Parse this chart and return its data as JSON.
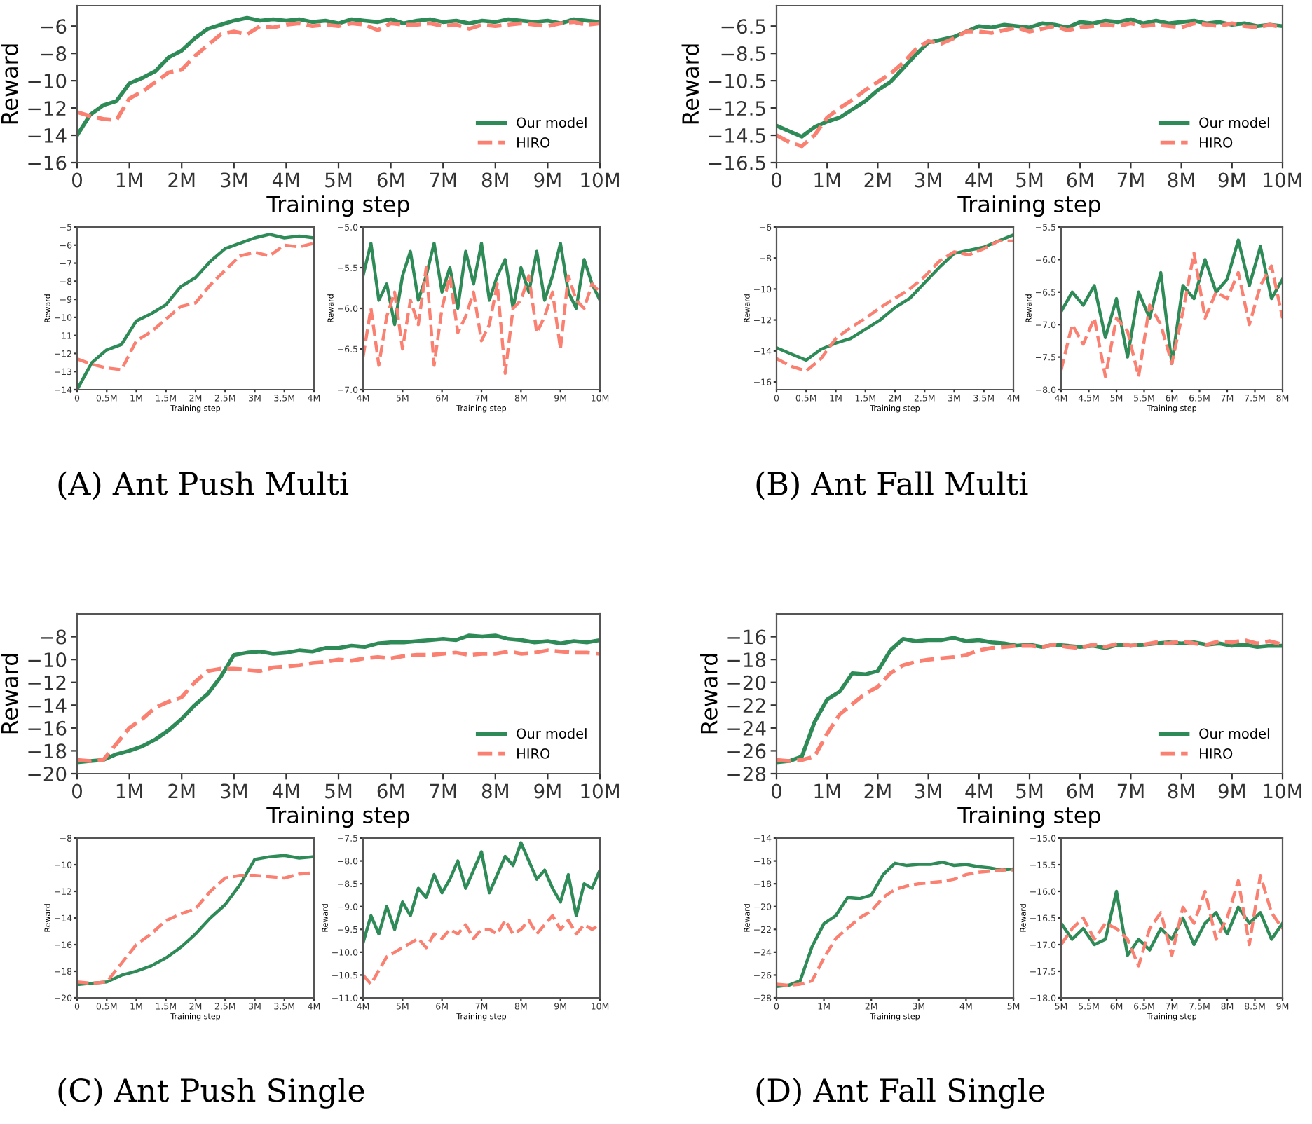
{
  "chart_data": [
    {
      "type": "line",
      "xlabel": "Training step",
      "ylabel": "Reward",
      "legend": "lower right",
      "x": [
        0,
        0.25,
        0.5,
        0.75,
        1,
        1.25,
        1.5,
        1.75,
        2,
        2.25,
        2.5,
        2.75,
        3,
        3.25,
        3.5,
        3.75,
        4,
        4.25,
        4.5,
        4.75,
        5,
        5.25,
        5.5,
        5.75,
        6,
        6.25,
        6.5,
        6.75,
        7,
        7.25,
        7.5,
        7.75,
        8,
        8.25,
        8.5,
        8.75,
        9,
        9.25,
        9.5,
        9.75,
        10
      ],
      "xlim": [
        0,
        10
      ],
      "xticks": [
        0,
        {
          "value": 1,
          "label": "1M"
        },
        {
          "value": 2,
          "label": "2M"
        },
        {
          "value": 3,
          "label": "3M"
        },
        {
          "value": 4,
          "label": "4M"
        },
        {
          "value": 5,
          "label": "5M"
        },
        {
          "value": 6,
          "label": "6M"
        },
        {
          "value": 7,
          "label": "7M"
        },
        {
          "value": 8,
          "label": "8M"
        },
        {
          "value": 9,
          "label": "9M"
        },
        {
          "value": 10,
          "label": "10M"
        }
      ],
      "ylim": [
        -16,
        -4.5
      ],
      "yticks": [
        -16,
        -14,
        -12,
        -10,
        -8,
        -6
      ],
      "series": [
        {
          "name": "Our model",
          "color": "#2e8b57",
          "line_style": "solid",
          "values": [
            -14.0,
            -12.5,
            -11.8,
            -11.5,
            -10.2,
            -9.8,
            -9.3,
            -8.3,
            -7.8,
            -6.9,
            -6.2,
            -5.9,
            -5.6,
            -5.4,
            -5.6,
            -5.5,
            -5.6,
            -5.5,
            -5.7,
            -5.6,
            -5.8,
            -5.5,
            -5.6,
            -5.7,
            -5.5,
            -5.8,
            -5.6,
            -5.5,
            -5.7,
            -5.6,
            -5.8,
            -5.6,
            -5.7,
            -5.5,
            -5.6,
            -5.7,
            -5.6,
            -5.8,
            -5.5,
            -5.6,
            -5.7
          ]
        },
        {
          "name": "HIRO",
          "color": "#fa8072",
          "line_style": "dashed",
          "values": [
            -12.3,
            -12.6,
            -12.8,
            -12.9,
            -11.3,
            -10.8,
            -10.1,
            -9.4,
            -9.2,
            -8.2,
            -7.4,
            -6.6,
            -6.4,
            -6.6,
            -6.0,
            -6.1,
            -5.9,
            -5.8,
            -6.0,
            -5.9,
            -6.0,
            -5.8,
            -5.9,
            -6.3,
            -5.8,
            -5.9,
            -5.9,
            -5.8,
            -6.0,
            -5.9,
            -6.2,
            -5.9,
            -6.0,
            -5.9,
            -5.8,
            -5.9,
            -6.0,
            -5.8,
            -5.7,
            -5.9,
            -5.8
          ]
        }
      ]
    },
    {
      "type": "line",
      "xlabel": "Training step",
      "ylabel": "Reward",
      "x": [
        0,
        0.25,
        0.5,
        0.75,
        1,
        1.25,
        1.5,
        1.75,
        2,
        2.25,
        2.5,
        2.75,
        3,
        3.25,
        3.5,
        3.75,
        4
      ],
      "xlim": [
        0,
        4
      ],
      "xticks": [
        0,
        {
          "value": 0.5,
          "label": "0.5M"
        },
        {
          "value": 1,
          "label": "1M"
        },
        {
          "value": 1.5,
          "label": "1.5M"
        },
        {
          "value": 2,
          "label": "2M"
        },
        {
          "value": 2.5,
          "label": "2.5M"
        },
        {
          "value": 3,
          "label": "3M"
        },
        {
          "value": 3.5,
          "label": "3.5M"
        },
        {
          "value": 4,
          "label": "4M"
        }
      ],
      "ylim": [
        -14,
        -5
      ],
      "yticks": [
        -14,
        -13,
        -12,
        -11,
        -10,
        -9,
        -8,
        -7,
        -6,
        -5
      ],
      "series": [
        {
          "color": "#2e8b57",
          "line_style": "solid",
          "values": [
            -14.0,
            -12.5,
            -11.8,
            -11.5,
            -10.2,
            -9.8,
            -9.3,
            -8.3,
            -7.8,
            -6.9,
            -6.2,
            -5.9,
            -5.6,
            -5.4,
            -5.6,
            -5.5,
            -5.6
          ]
        },
        {
          "color": "#fa8072",
          "line_style": "dashed",
          "values": [
            -12.3,
            -12.6,
            -12.8,
            -12.9,
            -11.3,
            -10.8,
            -10.1,
            -9.4,
            -9.2,
            -8.2,
            -7.4,
            -6.6,
            -6.4,
            -6.6,
            -6.0,
            -6.1,
            -5.9
          ]
        }
      ]
    },
    {
      "type": "line",
      "xlabel": "Training step",
      "ylabel": "Reward",
      "annotations": [
        "(A) Ant Push Multi"
      ],
      "x": [
        4,
        4.2,
        4.4,
        4.6,
        4.8,
        5,
        5.2,
        5.4,
        5.6,
        5.8,
        6,
        6.2,
        6.4,
        6.6,
        6.8,
        7,
        7.2,
        7.4,
        7.6,
        7.8,
        8,
        8.2,
        8.4,
        8.6,
        8.8,
        9,
        9.2,
        9.4,
        9.6,
        9.8,
        10
      ],
      "xlim": [
        4,
        10
      ],
      "xticks": [
        {
          "value": 4,
          "label": "4M"
        },
        {
          "value": 5,
          "label": "5M"
        },
        {
          "value": 6,
          "label": "6M"
        },
        {
          "value": 7,
          "label": "7M"
        },
        {
          "value": 8,
          "label": "8M"
        },
        {
          "value": 9,
          "label": "9M"
        },
        {
          "value": 10,
          "label": "10M"
        }
      ],
      "ylim": [
        -7,
        -5
      ],
      "yticks": [
        {
          "value": -7,
          "label": "−7.0"
        },
        -6.5,
        {
          "value": -6,
          "label": "−6.0"
        },
        -5.5,
        {
          "value": -5,
          "label": "−5.0"
        }
      ],
      "series": [
        {
          "color": "#2e8b57",
          "line_style": "solid",
          "values": [
            -5.6,
            -5.2,
            -5.9,
            -5.7,
            -6.2,
            -5.6,
            -5.3,
            -5.9,
            -5.6,
            -5.2,
            -5.8,
            -5.5,
            -6.0,
            -5.3,
            -5.7,
            -5.2,
            -5.9,
            -5.6,
            -5.4,
            -6.0,
            -5.5,
            -5.8,
            -5.3,
            -5.9,
            -5.6,
            -5.2,
            -5.8,
            -6.0,
            -5.4,
            -5.7,
            -5.9
          ]
        },
        {
          "color": "#fa8072",
          "line_style": "dashed",
          "values": [
            -6.6,
            -6.0,
            -6.7,
            -6.1,
            -5.8,
            -6.5,
            -5.9,
            -6.2,
            -5.5,
            -6.7,
            -6.0,
            -5.6,
            -6.3,
            -6.1,
            -5.8,
            -6.4,
            -6.2,
            -5.7,
            -6.8,
            -6.0,
            -5.9,
            -5.6,
            -6.3,
            -6.1,
            -5.8,
            -6.5,
            -5.6,
            -5.9,
            -6.0,
            -5.7,
            -5.8
          ]
        }
      ]
    },
    {
      "type": "line",
      "xlabel": "Training step",
      "ylabel": "Reward",
      "legend": "lower right",
      "x": [
        0,
        0.25,
        0.5,
        0.75,
        1,
        1.25,
        1.5,
        1.75,
        2,
        2.25,
        2.5,
        2.75,
        3,
        3.25,
        3.5,
        3.75,
        4,
        4.25,
        4.5,
        4.75,
        5,
        5.25,
        5.5,
        5.75,
        6,
        6.25,
        6.5,
        6.75,
        7,
        7.25,
        7.5,
        7.75,
        8,
        8.25,
        8.5,
        8.75,
        9,
        9.25,
        9.5,
        9.75,
        10
      ],
      "xlim": [
        0,
        10
      ],
      "xticks": [
        0,
        {
          "value": 1,
          "label": "1M"
        },
        {
          "value": 2,
          "label": "2M"
        },
        {
          "value": 3,
          "label": "3M"
        },
        {
          "value": 4,
          "label": "4M"
        },
        {
          "value": 5,
          "label": "5M"
        },
        {
          "value": 6,
          "label": "6M"
        },
        {
          "value": 7,
          "label": "7M"
        },
        {
          "value": 8,
          "label": "8M"
        },
        {
          "value": 9,
          "label": "9M"
        },
        {
          "value": 10,
          "label": "10M"
        }
      ],
      "ylim": [
        -16.5,
        -5
      ],
      "yticks": [
        -16.5,
        -14.5,
        -12.5,
        -10.5,
        -8.5,
        -6.5
      ],
      "series": [
        {
          "name": "Our model",
          "color": "#2e8b57",
          "line_style": "solid",
          "values": [
            -13.8,
            -14.2,
            -14.6,
            -13.9,
            -13.5,
            -13.2,
            -12.6,
            -12.0,
            -11.2,
            -10.6,
            -9.6,
            -8.6,
            -7.7,
            -7.5,
            -7.3,
            -6.9,
            -6.5,
            -6.6,
            -6.4,
            -6.5,
            -6.6,
            -6.3,
            -6.4,
            -6.6,
            -6.2,
            -6.3,
            -6.1,
            -6.2,
            -6.0,
            -6.3,
            -6.1,
            -6.3,
            -6.2,
            -6.1,
            -6.3,
            -6.2,
            -6.4,
            -6.3,
            -6.5,
            -6.4,
            -6.5
          ]
        },
        {
          "name": "HIRO",
          "color": "#fa8072",
          "line_style": "dashed",
          "values": [
            -14.5,
            -15.0,
            -15.3,
            -14.5,
            -13.2,
            -12.5,
            -11.9,
            -11.2,
            -10.6,
            -10.0,
            -9.2,
            -8.2,
            -7.6,
            -7.8,
            -7.4,
            -6.9,
            -6.9,
            -7.0,
            -6.8,
            -6.6,
            -6.9,
            -6.7,
            -6.5,
            -6.8,
            -6.6,
            -6.5,
            -6.4,
            -6.5,
            -6.3,
            -6.5,
            -6.4,
            -6.5,
            -6.6,
            -6.3,
            -6.4,
            -6.5,
            -6.3,
            -6.5,
            -6.6,
            -6.4,
            -6.6
          ]
        }
      ]
    },
    {
      "type": "line",
      "xlabel": "Training step",
      "ylabel": "Reward",
      "x": [
        0,
        0.25,
        0.5,
        0.75,
        1,
        1.25,
        1.5,
        1.75,
        2,
        2.25,
        2.5,
        2.75,
        3,
        3.25,
        3.5,
        3.75,
        4
      ],
      "xlim": [
        0,
        4
      ],
      "xticks": [
        0,
        {
          "value": 0.5,
          "label": "0.5M"
        },
        {
          "value": 1,
          "label": "1M"
        },
        {
          "value": 1.5,
          "label": "1.5M"
        },
        {
          "value": 2,
          "label": "2M"
        },
        {
          "value": 2.5,
          "label": "2.5M"
        },
        {
          "value": 3,
          "label": "3M"
        },
        {
          "value": 3.5,
          "label": "3.5M"
        },
        {
          "value": 4,
          "label": "4M"
        }
      ],
      "ylim": [
        -16.5,
        -6
      ],
      "yticks": [
        -16,
        -14,
        -12,
        -10,
        -8,
        -6
      ],
      "series": [
        {
          "color": "#2e8b57",
          "line_style": "solid",
          "values": [
            -13.8,
            -14.2,
            -14.6,
            -13.9,
            -13.5,
            -13.2,
            -12.6,
            -12.0,
            -11.2,
            -10.6,
            -9.6,
            -8.6,
            -7.7,
            -7.5,
            -7.3,
            -6.9,
            -6.5
          ]
        },
        {
          "color": "#fa8072",
          "line_style": "dashed",
          "values": [
            -14.5,
            -15.0,
            -15.3,
            -14.5,
            -13.2,
            -12.5,
            -11.9,
            -11.2,
            -10.6,
            -10.0,
            -9.2,
            -8.2,
            -7.6,
            -7.8,
            -7.4,
            -6.9,
            -6.9
          ]
        }
      ]
    },
    {
      "type": "line",
      "xlabel": "Training step",
      "ylabel": "Reward",
      "annotations": [
        "(B) Ant Fall Multi"
      ],
      "x": [
        4,
        4.2,
        4.4,
        4.6,
        4.8,
        5,
        5.2,
        5.4,
        5.6,
        5.8,
        6,
        6.2,
        6.4,
        6.6,
        6.8,
        7,
        7.2,
        7.4,
        7.6,
        7.8,
        8
      ],
      "xlim": [
        4,
        8
      ],
      "xticks": [
        {
          "value": 4,
          "label": "4M"
        },
        {
          "value": 4.5,
          "label": "4.5M"
        },
        {
          "value": 5,
          "label": "5M"
        },
        {
          "value": 5.5,
          "label": "5.5M"
        },
        {
          "value": 6,
          "label": "6M"
        },
        {
          "value": 6.5,
          "label": "6.5M"
        },
        {
          "value": 7,
          "label": "7M"
        },
        {
          "value": 7.5,
          "label": "7.5M"
        },
        {
          "value": 8,
          "label": "8M"
        }
      ],
      "ylim": [
        -8,
        -5.5
      ],
      "yticks": [
        {
          "value": -8,
          "label": "−8.0"
        },
        -7.5,
        {
          "value": -7,
          "label": "−7.0"
        },
        -6.5,
        {
          "value": -6,
          "label": "−6.0"
        },
        -5.5
      ],
      "series": [
        {
          "color": "#2e8b57",
          "line_style": "solid",
          "values": [
            -6.8,
            -6.5,
            -6.7,
            -6.4,
            -7.2,
            -6.6,
            -7.5,
            -6.5,
            -6.9,
            -6.2,
            -7.6,
            -6.4,
            -6.6,
            -6.0,
            -6.5,
            -6.3,
            -5.7,
            -6.4,
            -5.8,
            -6.6,
            -6.3
          ]
        },
        {
          "color": "#fa8072",
          "line_style": "dashed",
          "values": [
            -7.7,
            -7.0,
            -7.3,
            -6.9,
            -7.8,
            -6.9,
            -7.1,
            -7.8,
            -6.7,
            -7.0,
            -7.6,
            -6.8,
            -5.9,
            -6.9,
            -6.5,
            -6.6,
            -6.2,
            -7.0,
            -6.4,
            -6.1,
            -6.9
          ]
        }
      ]
    },
    {
      "type": "line",
      "xlabel": "Training step",
      "ylabel": "Reward",
      "legend": "lower right",
      "x": [
        0,
        0.25,
        0.5,
        0.75,
        1,
        1.25,
        1.5,
        1.75,
        2,
        2.25,
        2.5,
        2.75,
        3,
        3.25,
        3.5,
        3.75,
        4,
        4.25,
        4.5,
        4.75,
        5,
        5.25,
        5.5,
        5.75,
        6,
        6.25,
        6.5,
        6.75,
        7,
        7.25,
        7.5,
        7.75,
        8,
        8.25,
        8.5,
        8.75,
        9,
        9.25,
        9.5,
        9.75,
        10
      ],
      "xlim": [
        0,
        10
      ],
      "xticks": [
        0,
        {
          "value": 1,
          "label": "1M"
        },
        {
          "value": 2,
          "label": "2M"
        },
        {
          "value": 3,
          "label": "3M"
        },
        {
          "value": 4,
          "label": "4M"
        },
        {
          "value": 5,
          "label": "5M"
        },
        {
          "value": 6,
          "label": "6M"
        },
        {
          "value": 7,
          "label": "7M"
        },
        {
          "value": 8,
          "label": "8M"
        },
        {
          "value": 9,
          "label": "9M"
        },
        {
          "value": 10,
          "label": "10M"
        }
      ],
      "ylim": [
        -20,
        -6
      ],
      "yticks": [
        -20,
        -18,
        -16,
        -14,
        -12,
        -10,
        -8
      ],
      "series": [
        {
          "name": "Our model",
          "color": "#2e8b57",
          "line_style": "solid",
          "values": [
            -19.0,
            -18.9,
            -18.8,
            -18.3,
            -18.0,
            -17.6,
            -17.0,
            -16.2,
            -15.2,
            -14.0,
            -13.0,
            -11.5,
            -9.6,
            -9.4,
            -9.3,
            -9.5,
            -9.4,
            -9.2,
            -9.3,
            -9.0,
            -9.0,
            -8.8,
            -8.9,
            -8.6,
            -8.5,
            -8.5,
            -8.4,
            -8.3,
            -8.2,
            -8.3,
            -7.9,
            -8.0,
            -7.9,
            -8.2,
            -8.3,
            -8.5,
            -8.4,
            -8.6,
            -8.4,
            -8.5,
            -8.3
          ]
        },
        {
          "name": "HIRO",
          "color": "#fa8072",
          "line_style": "dashed",
          "values": [
            -18.8,
            -18.9,
            -18.8,
            -17.4,
            -16.0,
            -15.2,
            -14.2,
            -13.7,
            -13.3,
            -12.0,
            -11.0,
            -10.8,
            -10.8,
            -10.9,
            -11.0,
            -10.7,
            -10.6,
            -10.5,
            -10.3,
            -10.2,
            -10.0,
            -10.1,
            -9.9,
            -9.8,
            -9.9,
            -9.7,
            -9.6,
            -9.6,
            -9.5,
            -9.4,
            -9.6,
            -9.5,
            -9.5,
            -9.3,
            -9.5,
            -9.4,
            -9.2,
            -9.3,
            -9.4,
            -9.4,
            -9.5
          ]
        }
      ]
    },
    {
      "type": "line",
      "xlabel": "Training step",
      "ylabel": "Reward",
      "x": [
        0,
        0.25,
        0.5,
        0.75,
        1,
        1.25,
        1.5,
        1.75,
        2,
        2.25,
        2.5,
        2.75,
        3,
        3.25,
        3.5,
        3.75,
        4
      ],
      "xlim": [
        0,
        4
      ],
      "xticks": [
        0,
        {
          "value": 0.5,
          "label": "0.5M"
        },
        {
          "value": 1,
          "label": "1M"
        },
        {
          "value": 1.5,
          "label": "1.5M"
        },
        {
          "value": 2,
          "label": "2M"
        },
        {
          "value": 2.5,
          "label": "2.5M"
        },
        {
          "value": 3,
          "label": "3M"
        },
        {
          "value": 3.5,
          "label": "3.5M"
        },
        {
          "value": 4,
          "label": "4M"
        }
      ],
      "ylim": [
        -20,
        -8
      ],
      "yticks": [
        -20,
        -18,
        -16,
        -14,
        -12,
        -10,
        -8
      ],
      "series": [
        {
          "color": "#2e8b57",
          "line_style": "solid",
          "values": [
            -19.0,
            -18.9,
            -18.8,
            -18.3,
            -18.0,
            -17.6,
            -17.0,
            -16.2,
            -15.2,
            -14.0,
            -13.0,
            -11.5,
            -9.6,
            -9.4,
            -9.3,
            -9.5,
            -9.4
          ]
        },
        {
          "color": "#fa8072",
          "line_style": "dashed",
          "values": [
            -18.8,
            -18.9,
            -18.8,
            -17.4,
            -16.0,
            -15.2,
            -14.2,
            -13.7,
            -13.3,
            -12.0,
            -11.0,
            -10.8,
            -10.8,
            -10.9,
            -11.0,
            -10.7,
            -10.6
          ]
        }
      ]
    },
    {
      "type": "line",
      "xlabel": "Training step",
      "ylabel": "Reward",
      "annotations": [
        "(C) Ant Push Single"
      ],
      "x": [
        4,
        4.2,
        4.4,
        4.6,
        4.8,
        5,
        5.2,
        5.4,
        5.6,
        5.8,
        6,
        6.2,
        6.4,
        6.6,
        6.8,
        7,
        7.2,
        7.4,
        7.6,
        7.8,
        8,
        8.2,
        8.4,
        8.6,
        8.8,
        9,
        9.2,
        9.4,
        9.6,
        9.8,
        10
      ],
      "xlim": [
        4,
        10
      ],
      "xticks": [
        {
          "value": 4,
          "label": "4M"
        },
        {
          "value": 5,
          "label": "5M"
        },
        {
          "value": 6,
          "label": "6M"
        },
        {
          "value": 7,
          "label": "7M"
        },
        {
          "value": 8,
          "label": "8M"
        },
        {
          "value": 9,
          "label": "9M"
        },
        {
          "value": 10,
          "label": "10M"
        }
      ],
      "ylim": [
        -11,
        -7.5
      ],
      "yticks": [
        {
          "value": -11,
          "label": "−11.0"
        },
        -10.5,
        {
          "value": -10,
          "label": "−10.0"
        },
        -9.5,
        {
          "value": -9,
          "label": "−9.0"
        },
        -8.5,
        {
          "value": -8,
          "label": "−8.0"
        },
        -7.5
      ],
      "series": [
        {
          "color": "#2e8b57",
          "line_style": "solid",
          "values": [
            -9.8,
            -9.2,
            -9.6,
            -9.0,
            -9.5,
            -8.9,
            -9.2,
            -8.6,
            -8.8,
            -8.3,
            -8.7,
            -8.4,
            -8.0,
            -8.6,
            -8.2,
            -7.8,
            -8.7,
            -8.3,
            -7.9,
            -8.1,
            -7.6,
            -8.0,
            -8.4,
            -8.2,
            -8.6,
            -8.9,
            -8.3,
            -9.2,
            -8.5,
            -8.6,
            -8.2
          ]
        },
        {
          "color": "#fa8072",
          "line_style": "dashed",
          "values": [
            -10.5,
            -10.7,
            -10.4,
            -10.1,
            -10.0,
            -9.9,
            -9.8,
            -9.7,
            -9.9,
            -9.6,
            -9.7,
            -9.5,
            -9.6,
            -9.4,
            -9.7,
            -9.5,
            -9.5,
            -9.6,
            -9.3,
            -9.6,
            -9.5,
            -9.3,
            -9.6,
            -9.4,
            -9.2,
            -9.5,
            -9.3,
            -9.6,
            -9.4,
            -9.5,
            -9.4
          ]
        }
      ]
    },
    {
      "type": "line",
      "xlabel": "Training step",
      "ylabel": "Reward",
      "legend": "lower right",
      "x": [
        0,
        0.25,
        0.5,
        0.75,
        1,
        1.25,
        1.5,
        1.75,
        2,
        2.25,
        2.5,
        2.75,
        3,
        3.25,
        3.5,
        3.75,
        4,
        4.25,
        4.5,
        4.75,
        5,
        5.25,
        5.5,
        5.75,
        6,
        6.25,
        6.5,
        6.75,
        7,
        7.25,
        7.5,
        7.75,
        8,
        8.25,
        8.5,
        8.75,
        9,
        9.25,
        9.5,
        9.75,
        10
      ],
      "xlim": [
        0,
        10
      ],
      "xticks": [
        0,
        {
          "value": 1,
          "label": "1M"
        },
        {
          "value": 2,
          "label": "2M"
        },
        {
          "value": 3,
          "label": "3M"
        },
        {
          "value": 4,
          "label": "4M"
        },
        {
          "value": 5,
          "label": "5M"
        },
        {
          "value": 6,
          "label": "6M"
        },
        {
          "value": 7,
          "label": "7M"
        },
        {
          "value": 8,
          "label": "8M"
        },
        {
          "value": 9,
          "label": "9M"
        },
        {
          "value": 10,
          "label": "10M"
        }
      ],
      "ylim": [
        -28,
        -14
      ],
      "yticks": [
        -28,
        -26,
        -24,
        -22,
        -20,
        -18,
        -16
      ],
      "series": [
        {
          "name": "Our model",
          "color": "#2e8b57",
          "line_style": "solid",
          "values": [
            -27.0,
            -26.9,
            -26.5,
            -23.5,
            -21.5,
            -20.8,
            -19.2,
            -19.3,
            -19.0,
            -17.2,
            -16.2,
            -16.4,
            -16.3,
            -16.3,
            -16.1,
            -16.4,
            -16.3,
            -16.5,
            -16.6,
            -16.8,
            -16.7,
            -16.9,
            -16.7,
            -16.8,
            -16.9,
            -16.8,
            -17.0,
            -16.7,
            -16.8,
            -16.7,
            -16.6,
            -16.5,
            -16.6,
            -16.5,
            -16.7,
            -16.6,
            -16.8,
            -16.7,
            -16.9,
            -16.8,
            -16.8
          ]
        },
        {
          "name": "HIRO",
          "color": "#fa8072",
          "line_style": "dashed",
          "values": [
            -26.8,
            -26.9,
            -26.8,
            -26.5,
            -24.5,
            -22.8,
            -21.9,
            -21.0,
            -20.4,
            -19.2,
            -18.5,
            -18.2,
            -18.0,
            -17.9,
            -17.8,
            -17.6,
            -17.2,
            -17.0,
            -16.9,
            -16.8,
            -16.8,
            -16.9,
            -16.7,
            -16.9,
            -17.0,
            -16.7,
            -16.9,
            -16.6,
            -16.8,
            -16.7,
            -16.5,
            -16.6,
            -16.4,
            -16.6,
            -16.7,
            -16.4,
            -16.5,
            -16.3,
            -16.6,
            -16.4,
            -16.7
          ]
        }
      ]
    },
    {
      "type": "line",
      "xlabel": "Training step",
      "ylabel": "Reward",
      "x": [
        0,
        0.25,
        0.5,
        0.75,
        1,
        1.25,
        1.5,
        1.75,
        2,
        2.25,
        2.5,
        2.75,
        3,
        3.25,
        3.5,
        3.75,
        4,
        4.25,
        4.5,
        4.75,
        5
      ],
      "xlim": [
        0,
        5
      ],
      "xticks": [
        0,
        {
          "value": 1,
          "label": "1M"
        },
        {
          "value": 2,
          "label": "2M"
        },
        {
          "value": 3,
          "label": "3M"
        },
        {
          "value": 4,
          "label": "4M"
        },
        {
          "value": 5,
          "label": "5M"
        }
      ],
      "ylim": [
        -28,
        -14
      ],
      "yticks": [
        -28,
        -26,
        -24,
        -22,
        -20,
        -18,
        -16,
        -14
      ],
      "series": [
        {
          "color": "#2e8b57",
          "line_style": "solid",
          "values": [
            -27.0,
            -26.9,
            -26.5,
            -23.5,
            -21.5,
            -20.8,
            -19.2,
            -19.3,
            -19.0,
            -17.2,
            -16.2,
            -16.4,
            -16.3,
            -16.3,
            -16.1,
            -16.4,
            -16.3,
            -16.5,
            -16.6,
            -16.8,
            -16.7
          ]
        },
        {
          "color": "#fa8072",
          "line_style": "dashed",
          "values": [
            -26.8,
            -26.9,
            -26.8,
            -26.5,
            -24.5,
            -22.8,
            -21.9,
            -21.0,
            -20.4,
            -19.2,
            -18.5,
            -18.2,
            -18.0,
            -17.9,
            -17.8,
            -17.6,
            -17.2,
            -17.0,
            -16.9,
            -16.8,
            -16.8
          ]
        }
      ]
    },
    {
      "type": "line",
      "xlabel": "Training step",
      "ylabel": "Reward",
      "annotations": [
        "(D) Ant Fall Single"
      ],
      "x": [
        5,
        5.2,
        5.4,
        5.6,
        5.8,
        6,
        6.2,
        6.4,
        6.6,
        6.8,
        7,
        7.2,
        7.4,
        7.6,
        7.8,
        8,
        8.2,
        8.4,
        8.6,
        8.8,
        9
      ],
      "xlim": [
        5,
        9
      ],
      "xticks": [
        {
          "value": 5,
          "label": "5M"
        },
        {
          "value": 5.5,
          "label": "5.5M"
        },
        {
          "value": 6,
          "label": "6M"
        },
        {
          "value": 6.5,
          "label": "6.5M"
        },
        {
          "value": 7,
          "label": "7M"
        },
        {
          "value": 7.5,
          "label": "7.5M"
        },
        {
          "value": 8,
          "label": "8M"
        },
        {
          "value": 8.5,
          "label": "8.5M"
        },
        {
          "value": 9,
          "label": "9M"
        }
      ],
      "ylim": [
        -18,
        -15
      ],
      "yticks": [
        {
          "value": -18,
          "label": "−18.0"
        },
        -17.5,
        {
          "value": -17,
          "label": "−17.0"
        },
        -16.5,
        {
          "value": -16,
          "label": "−16.0"
        },
        -15.5,
        {
          "value": -15,
          "label": "−15.0"
        }
      ],
      "series": [
        {
          "color": "#2e8b57",
          "line_style": "solid",
          "values": [
            -16.6,
            -16.9,
            -16.7,
            -17.0,
            -16.9,
            -16.0,
            -17.2,
            -16.9,
            -17.1,
            -16.7,
            -16.9,
            -16.5,
            -17.0,
            -16.6,
            -16.4,
            -16.8,
            -16.3,
            -16.6,
            -16.4,
            -16.9,
            -16.6
          ]
        },
        {
          "color": "#fa8072",
          "line_style": "dashed",
          "values": [
            -17.0,
            -16.7,
            -16.5,
            -16.9,
            -16.6,
            -16.7,
            -16.9,
            -17.4,
            -16.7,
            -16.4,
            -17.2,
            -16.3,
            -16.6,
            -16.0,
            -16.9,
            -16.5,
            -15.8,
            -17.0,
            -15.7,
            -16.4,
            -16.7
          ]
        }
      ]
    }
  ]
}
